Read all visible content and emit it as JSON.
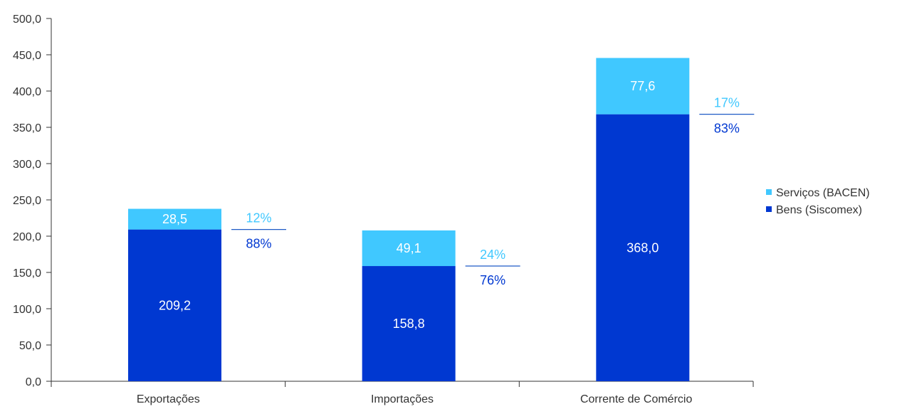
{
  "chart_data": {
    "type": "bar",
    "stacked": true,
    "categories": [
      "Exportações",
      "Importações",
      "Corrente de Comércio"
    ],
    "series": [
      {
        "name": "Bens (Siscomex)",
        "values": [
          209.2,
          158.8,
          368.0
        ],
        "value_labels": [
          "209,2",
          "158,8",
          "368,0"
        ],
        "share_labels": [
          "88%",
          "76%",
          "83%"
        ],
        "color": "#0038D1"
      },
      {
        "name": "Serviços (BACEN)",
        "values": [
          28.5,
          49.1,
          77.6
        ],
        "value_labels": [
          "28,5",
          "49,1",
          "77,6"
        ],
        "share_labels": [
          "12%",
          "24%",
          "17%"
        ],
        "color": "#40C8FF"
      }
    ],
    "ylim": [
      0,
      500
    ],
    "yticks": [
      0,
      50,
      100,
      150,
      200,
      250,
      300,
      350,
      400,
      450,
      500
    ],
    "ytick_labels": [
      "0,0",
      "50,0",
      "100,0",
      "150,0",
      "200,0",
      "250,0",
      "300,0",
      "350,0",
      "400,0",
      "450,0",
      "500,0"
    ],
    "legend": {
      "placement": "right",
      "order": [
        "Serviços (BACEN)",
        "Bens (Siscomex)"
      ]
    },
    "grid": false,
    "divider_color": "#1F5BC6"
  }
}
